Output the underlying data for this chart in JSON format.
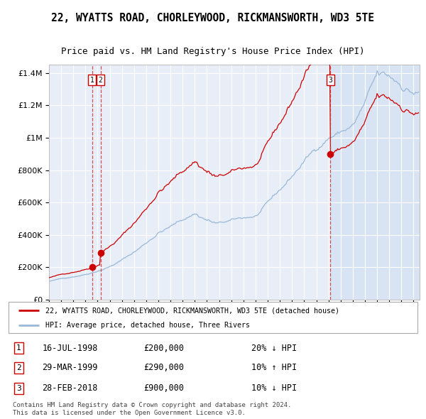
{
  "title_line1": "22, WYATTS ROAD, CHORLEYWOOD, RICKMANSWORTH, WD3 5TE",
  "title_line2": "Price paid vs. HM Land Registry's House Price Index (HPI)",
  "legend_red": "22, WYATTS ROAD, CHORLEYWOOD, RICKMANSWORTH, WD3 5TE (detached house)",
  "legend_blue": "HPI: Average price, detached house, Three Rivers",
  "transactions": [
    {
      "num": 1,
      "price": 200000,
      "label": "16-JUL-1998",
      "price_str": "£200,000",
      "pct": "20%",
      "dir": "↓",
      "x_year": 1998.54
    },
    {
      "num": 2,
      "price": 290000,
      "label": "29-MAR-1999",
      "price_str": "£290,000",
      "pct": "10%",
      "dir": "↑",
      "x_year": 1999.24
    },
    {
      "num": 3,
      "price": 900000,
      "label": "28-FEB-2018",
      "price_str": "£900,000",
      "pct": "10%",
      "dir": "↓",
      "x_year": 2018.16
    }
  ],
  "copyright": "Contains HM Land Registry data © Crown copyright and database right 2024.\nThis data is licensed under the Open Government Licence v3.0.",
  "ylim": [
    0,
    1450000
  ],
  "xlim_start": 1995.0,
  "xlim_end": 2025.5,
  "background_color": "#ffffff",
  "plot_bg_color": "#e8eef8",
  "grid_color": "#ffffff",
  "red_line_color": "#cc0000",
  "blue_line_color": "#99b8d8",
  "shade_color": "#ccddf0",
  "dashed_vline_color": "#cc3333",
  "marker_color": "#cc0000",
  "box_edge_color": "#cc0000"
}
